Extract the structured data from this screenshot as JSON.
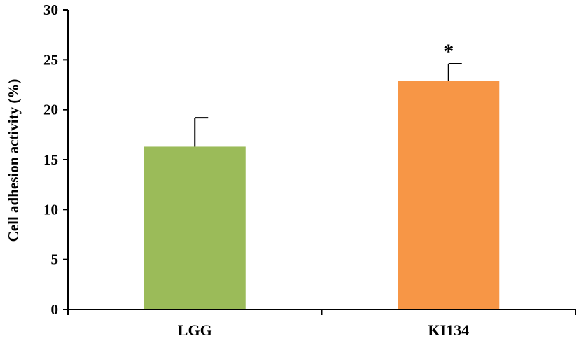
{
  "chart_data": {
    "type": "bar",
    "categories": [
      "LGG",
      "KI134"
    ],
    "values": [
      16.3,
      22.9
    ],
    "error_upper": [
      19.2,
      24.6
    ],
    "colors": [
      "#9BBB59",
      "#F79646"
    ],
    "annotations": [
      "",
      "*"
    ],
    "title": "",
    "xlabel": "",
    "ylabel": "Cell adhesion activity (%)",
    "ylim": [
      0,
      30
    ],
    "yticks": [
      "0",
      "5",
      "10",
      "15",
      "20",
      "25",
      "30"
    ],
    "grid": false,
    "legend": "none"
  }
}
